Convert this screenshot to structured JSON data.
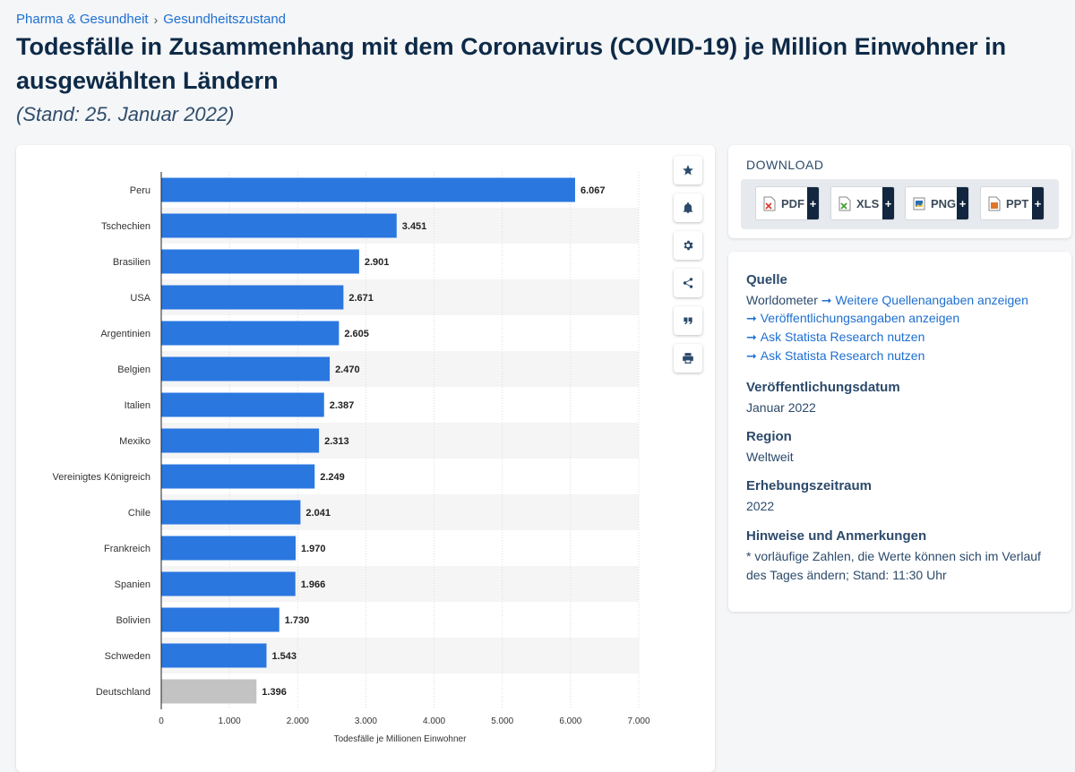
{
  "breadcrumb": {
    "items": [
      "Pharma & Gesundheit",
      "Gesundheitszustand"
    ],
    "separator": "›"
  },
  "title": "Todesfälle in Zusammenhang mit dem Coronavirus (COVID-19) je Million Einwohner in ausgewählten Ländern",
  "subtitle": "(Stand: 25. Januar 2022)",
  "chart_data": {
    "type": "bar",
    "orientation": "horizontal",
    "categories": [
      "Peru",
      "Tschechien",
      "Brasilien",
      "USA",
      "Argentinien",
      "Belgien",
      "Italien",
      "Mexiko",
      "Vereinigtes Königreich",
      "Chile",
      "Frankreich",
      "Spanien",
      "Bolivien",
      "Schweden",
      "Deutschland"
    ],
    "values": [
      6067,
      3451,
      2901,
      2671,
      2605,
      2470,
      2387,
      2313,
      2249,
      2041,
      1970,
      1966,
      1730,
      1543,
      1396
    ],
    "value_labels": [
      "6.067",
      "3.451",
      "2.901",
      "2.671",
      "2.605",
      "2.470",
      "2.387",
      "2.313",
      "2.249",
      "2.041",
      "1.970",
      "1.966",
      "1.730",
      "1.543",
      "1.396"
    ],
    "highlight_category": "Deutschland",
    "colors": {
      "bar": "#2a77e0",
      "highlight": "#c3c3c3"
    },
    "xlim": [
      0,
      7000
    ],
    "ticks": [
      0,
      1000,
      2000,
      3000,
      4000,
      5000,
      6000,
      7000
    ],
    "tick_labels": [
      "0",
      "1.000",
      "2.000",
      "3.000",
      "4.000",
      "5.000",
      "6.000",
      "7.000"
    ],
    "xlabel": "Todesfälle je Millionen Einwohner",
    "ylabel": "",
    "grid": true
  },
  "toolbar": {
    "icons": [
      "star-icon",
      "bell-icon",
      "gear-icon",
      "share-icon",
      "quote-icon",
      "print-icon"
    ]
  },
  "download": {
    "title": "DOWNLOAD",
    "buttons": [
      {
        "label": "PDF",
        "plus": "+",
        "color": "#d9352b"
      },
      {
        "label": "XLS",
        "plus": "+",
        "color": "#3f9a2f"
      },
      {
        "label": "PNG",
        "plus": "+",
        "color": "#2a6fb5"
      },
      {
        "label": "PPT",
        "plus": "+",
        "color": "#e0762a"
      }
    ]
  },
  "info": {
    "source_heading": "Quelle",
    "source_name": "Worldometer",
    "links": [
      "Weitere Quellenangaben anzeigen",
      "Veröffentlichungsangaben anzeigen",
      "Ask Statista Research nutzen",
      "Ask Statista Research nutzen"
    ],
    "pub_date_heading": "Veröffentlichungsdatum",
    "pub_date": "Januar 2022",
    "region_heading": "Region",
    "region": "Weltweit",
    "period_heading": "Erhebungszeitraum",
    "period": "2022",
    "notes_heading": "Hinweise und Anmerkungen",
    "notes": "* vorläufige Zahlen, die Werte können sich im Verlauf des Tages ändern; Stand: 11:30 Uhr"
  }
}
